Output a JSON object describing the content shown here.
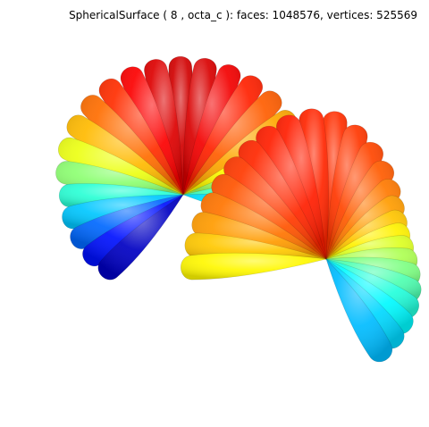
{
  "figure": {
    "title": "SphericalSurface ( 8 , octa_c ):  faces: 1048576,  vertices: 525569",
    "background_color": "#ffffff",
    "colormap": "jet",
    "left_lobe": {
      "petal_count": 22
    },
    "right_lobe": {
      "petal_count": 26
    }
  }
}
